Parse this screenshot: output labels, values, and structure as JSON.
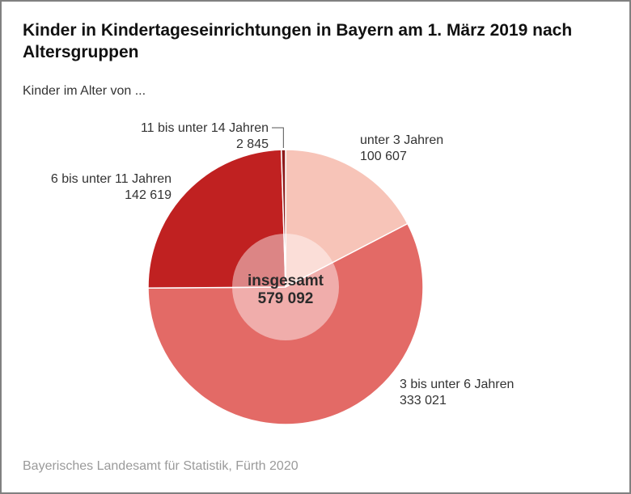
{
  "chart_data": {
    "type": "pie",
    "title": "Kinder in Kindertageseinrichtungen in Bayern am 1. März 2019 nach Altersgruppen",
    "subtitle": "Kinder im Alter von ...",
    "center_label": "insgesamt",
    "total": 579092,
    "total_label": "579 092",
    "slices": [
      {
        "label": "unter 3 Jahren",
        "value": 100607,
        "value_label": "100 607",
        "color": "#f7c4b8"
      },
      {
        "label": "3 bis unter 6 Jahren",
        "value": 333021,
        "value_label": "333 021",
        "color": "#e36a66"
      },
      {
        "label": "6 bis unter 11 Jahren",
        "value": 142619,
        "value_label": "142 619",
        "color": "#c02121"
      },
      {
        "label": "11 bis unter 14 Jahren",
        "value": 2845,
        "value_label": "2 845",
        "color": "#8f1b1b"
      }
    ],
    "source": "Bayerisches Landesamt für Statistik, Fürth 2020"
  }
}
